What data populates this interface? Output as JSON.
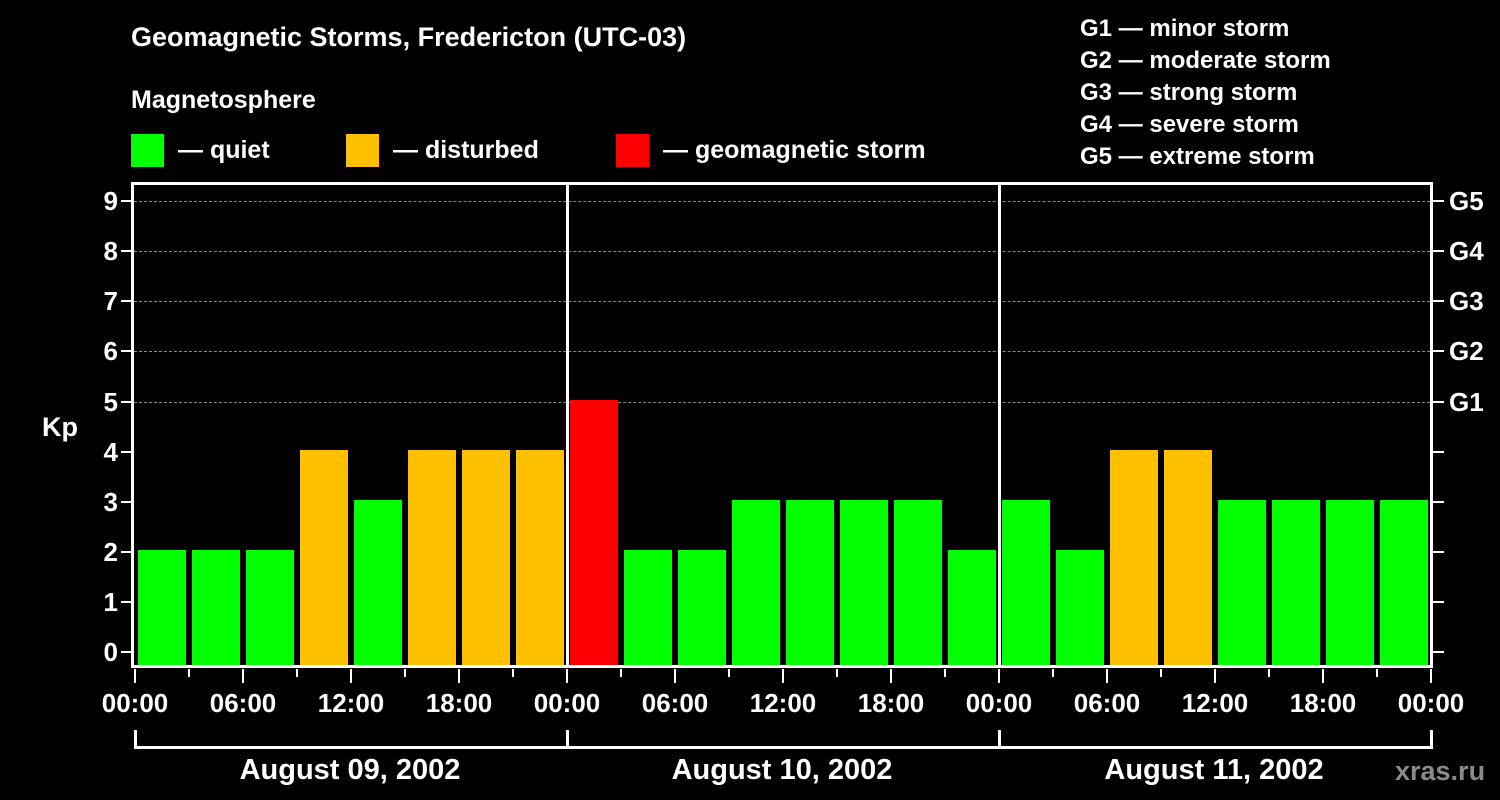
{
  "title": "Geomagnetic Storms, Fredericton (UTC-03)",
  "subtitle": "Magnetosphere",
  "legend": [
    {
      "label": "— quiet",
      "color": "#00ff00"
    },
    {
      "label": "— disturbed",
      "color": "#ffc000"
    },
    {
      "label": "— geomagnetic storm",
      "color": "#ff0000"
    }
  ],
  "g_scale_legend": [
    "G1 — minor storm",
    "G2 — moderate storm",
    "G3 — strong storm",
    "G4 — severe storm",
    "G5 — extreme storm"
  ],
  "y_axis": {
    "label": "Kp",
    "ticks": [
      "0",
      "1",
      "2",
      "3",
      "4",
      "5",
      "6",
      "7",
      "8",
      "9"
    ]
  },
  "right_axis": {
    "ticks": [
      {
        "kp": 5,
        "label": "G1"
      },
      {
        "kp": 6,
        "label": "G2"
      },
      {
        "kp": 7,
        "label": "G3"
      },
      {
        "kp": 8,
        "label": "G4"
      },
      {
        "kp": 9,
        "label": "G5"
      }
    ]
  },
  "x_axis": {
    "tick_labels": [
      "00:00",
      "06:00",
      "12:00",
      "18:00",
      "00:00",
      "06:00",
      "12:00",
      "18:00",
      "00:00",
      "06:00",
      "12:00",
      "18:00",
      "00:00"
    ],
    "days": [
      "August 09, 2002",
      "August 10, 2002",
      "August 11, 2002"
    ]
  },
  "credit": "xras.ru",
  "colors": {
    "quiet": "#00ff00",
    "disturbed": "#ffc000",
    "storm": "#ff0000",
    "grid": "#888888",
    "background": "#000000"
  },
  "chart_data": {
    "type": "bar",
    "title": "Geomagnetic Storms, Fredericton (UTC-03)",
    "subtitle": "Magnetosphere",
    "xlabel": "",
    "ylabel": "Kp",
    "ylim": [
      0,
      9
    ],
    "grid": "dashed horizontal at Kp 5-9",
    "legend_position": "top",
    "categories": [
      "Aug 09 00:00",
      "Aug 09 03:00",
      "Aug 09 06:00",
      "Aug 09 09:00",
      "Aug 09 12:00",
      "Aug 09 15:00",
      "Aug 09 18:00",
      "Aug 09 21:00",
      "Aug 10 00:00",
      "Aug 10 03:00",
      "Aug 10 06:00",
      "Aug 10 09:00",
      "Aug 10 12:00",
      "Aug 10 15:00",
      "Aug 10 18:00",
      "Aug 10 21:00",
      "Aug 11 00:00",
      "Aug 11 03:00",
      "Aug 11 06:00",
      "Aug 11 09:00",
      "Aug 11 12:00",
      "Aug 11 15:00",
      "Aug 11 18:00",
      "Aug 11 21:00"
    ],
    "values": [
      2,
      2,
      2,
      4,
      3,
      4,
      4,
      4,
      5,
      2,
      2,
      3,
      3,
      3,
      3,
      2,
      3,
      2,
      4,
      4,
      3,
      3,
      3,
      3
    ],
    "status": [
      "quiet",
      "quiet",
      "quiet",
      "disturbed",
      "quiet",
      "disturbed",
      "disturbed",
      "disturbed",
      "storm",
      "quiet",
      "quiet",
      "quiet",
      "quiet",
      "quiet",
      "quiet",
      "quiet",
      "quiet",
      "quiet",
      "disturbed",
      "disturbed",
      "quiet",
      "quiet",
      "quiet",
      "quiet"
    ],
    "right_axis_labels": {
      "5": "G1",
      "6": "G2",
      "7": "G3",
      "8": "G4",
      "9": "G5"
    }
  }
}
